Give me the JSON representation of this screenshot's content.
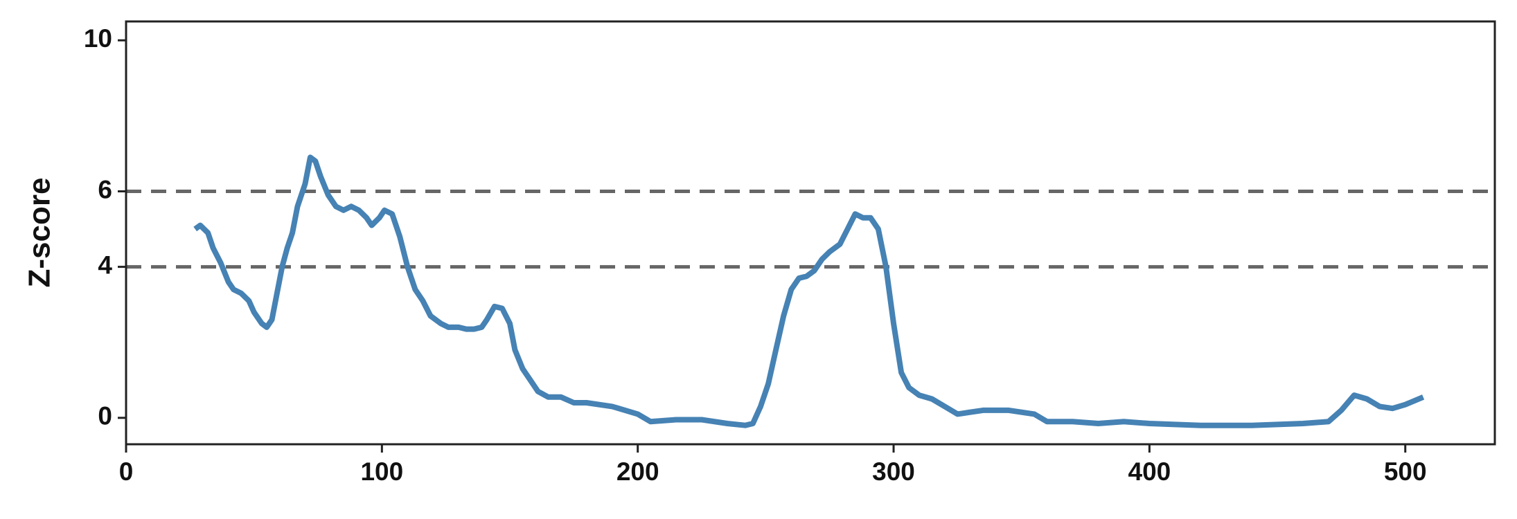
{
  "chart_data": {
    "type": "line",
    "ylabel": "Z-score",
    "xlim": [
      0,
      535
    ],
    "ylim": [
      -0.7,
      10.5
    ],
    "xticks": [
      0,
      100,
      200,
      300,
      400,
      500
    ],
    "yticks": [
      0,
      4,
      6,
      10
    ],
    "hlines": [
      4,
      6
    ],
    "hline_color": "#666666",
    "x": [
      27,
      29,
      32,
      34,
      37,
      40,
      42,
      45,
      48,
      50,
      53,
      55,
      57,
      59,
      61,
      63,
      65,
      67,
      70,
      72,
      74,
      76,
      79,
      82,
      85,
      88,
      91,
      94,
      96,
      99,
      101,
      104,
      107,
      110,
      113,
      116,
      119,
      123,
      126,
      130,
      133,
      136,
      139,
      141,
      144,
      147,
      150,
      152,
      155,
      158,
      161,
      165,
      170,
      175,
      180,
      190,
      200,
      205,
      215,
      225,
      235,
      242,
      245,
      248,
      251,
      254,
      257,
      260,
      263,
      266,
      269,
      272,
      275,
      279,
      282,
      285,
      288,
      291,
      294,
      297,
      300,
      303,
      306,
      310,
      315,
      320,
      325,
      335,
      345,
      355,
      360,
      370,
      380,
      390,
      400,
      420,
      440,
      460,
      470,
      475,
      480,
      485,
      490,
      495,
      500,
      507
    ],
    "series": [
      {
        "color": "#4682b4",
        "values": [
          5.0,
          5.1,
          4.9,
          4.5,
          4.1,
          3.6,
          3.4,
          3.3,
          3.1,
          2.8,
          2.5,
          2.4,
          2.6,
          3.3,
          4.0,
          4.5,
          4.9,
          5.6,
          6.2,
          6.9,
          6.8,
          6.4,
          5.9,
          5.6,
          5.5,
          5.6,
          5.5,
          5.3,
          5.1,
          5.3,
          5.5,
          5.4,
          4.8,
          4.0,
          3.4,
          3.1,
          2.7,
          2.5,
          2.4,
          2.4,
          2.35,
          2.35,
          2.4,
          2.6,
          2.95,
          2.9,
          2.5,
          1.8,
          1.3,
          1.0,
          0.7,
          0.55,
          0.55,
          0.4,
          0.4,
          0.3,
          0.1,
          -0.1,
          -0.05,
          -0.05,
          -0.15,
          -0.2,
          -0.15,
          0.3,
          0.9,
          1.8,
          2.7,
          3.4,
          3.7,
          3.75,
          3.9,
          4.2,
          4.4,
          4.6,
          5.0,
          5.4,
          5.3,
          5.3,
          5.0,
          4.0,
          2.5,
          1.2,
          0.8,
          0.6,
          0.5,
          0.3,
          0.1,
          0.2,
          0.2,
          0.1,
          -0.1,
          -0.1,
          -0.15,
          -0.1,
          -0.15,
          -0.2,
          -0.2,
          -0.15,
          -0.1,
          0.2,
          0.6,
          0.5,
          0.3,
          0.25,
          0.35,
          0.55
        ]
      }
    ]
  }
}
